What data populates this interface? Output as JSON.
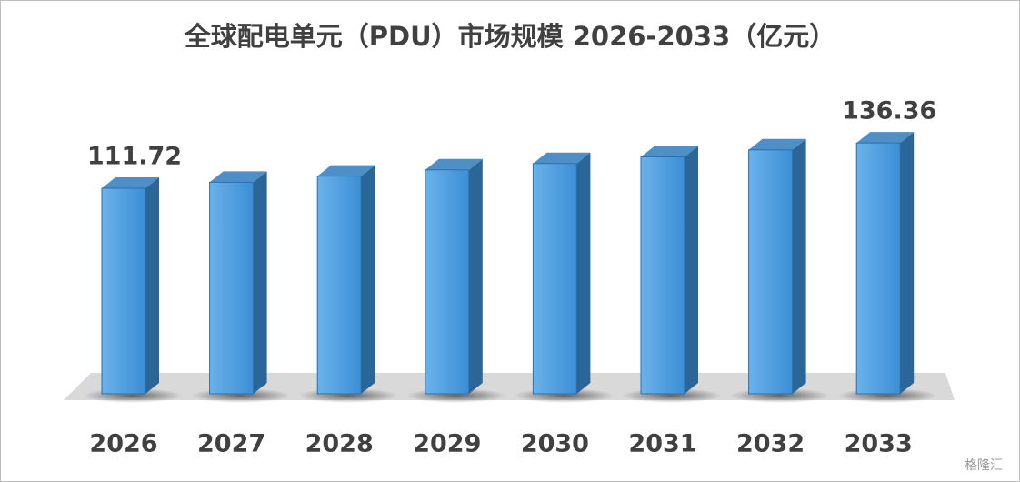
{
  "chart_data": {
    "type": "bar3d",
    "title": "全球配电单元（PDU）市场规模 2026-2033（亿元）",
    "categories": [
      "2026",
      "2027",
      "2028",
      "2029",
      "2030",
      "2031",
      "2032",
      "2033"
    ],
    "values": [
      111.72,
      115.0,
      118.3,
      121.7,
      125.2,
      128.8,
      132.6,
      136.36
    ],
    "value_labels": [
      "111.72",
      null,
      null,
      null,
      null,
      null,
      null,
      "136.36"
    ],
    "color": "#4a9de0",
    "watermark": "格隆汇"
  }
}
